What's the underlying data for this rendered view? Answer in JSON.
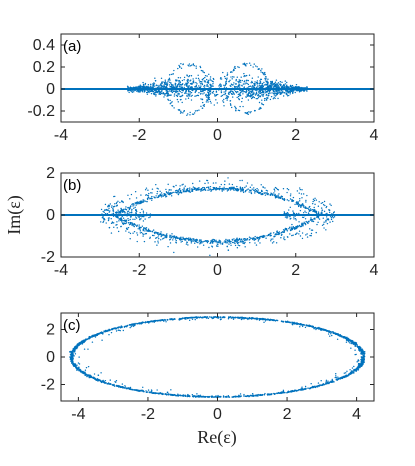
{
  "figure": {
    "ylabel": "Im(ε)",
    "xlabel": "Re(ε)",
    "point_color": "#0072BD"
  },
  "chart_data": [
    {
      "type": "scatter",
      "panel": "(a)",
      "xlim": [
        -4,
        4
      ],
      "ylim": [
        -0.3,
        0.5
      ],
      "xticks": [
        -4,
        -2,
        0,
        2,
        4
      ],
      "yticks": [
        -0.2,
        0,
        0.2,
        0.4
      ],
      "xtick_labels": [
        "-4",
        "-2",
        "0",
        "2",
        "4"
      ],
      "ytick_labels": [
        "-0.2",
        "0",
        "0.2",
        "0.4"
      ],
      "grid": false,
      "description_values": {
        "real_axis_line": [
          -4,
          4
        ],
        "cloud_x_range": [
          -2.3,
          2.3
        ],
        "cloud_y_halfwidth": 0.06,
        "lobe_centers": [
          -0.75,
          0.75
        ],
        "lobe_halfwidth": 0.55,
        "lobe_height": 0.22
      }
    },
    {
      "type": "scatter",
      "panel": "(b)",
      "xlim": [
        -4,
        4
      ],
      "ylim": [
        -2,
        2
      ],
      "xticks": [
        -4,
        -2,
        0,
        2,
        4
      ],
      "yticks": [
        -2,
        0,
        2
      ],
      "xtick_labels": [
        "-4",
        "-2",
        "0",
        "2",
        "4"
      ],
      "ytick_labels": [
        "-2",
        "0",
        "2"
      ],
      "grid": false,
      "description_values": {
        "real_axis_line": [
          -4,
          4
        ],
        "eye_halfwidth_x": 2.6,
        "eye_halfheight_y": 1.25,
        "outer_scatter_halfheight_y": 1.55
      }
    },
    {
      "type": "scatter",
      "panel": "(c)",
      "xlim": [
        -4.5,
        4.5
      ],
      "ylim": [
        -3.2,
        3.2
      ],
      "xticks": [
        -4,
        -2,
        0,
        2,
        4
      ],
      "yticks": [
        -2,
        0,
        2
      ],
      "xtick_labels": [
        "-4",
        "-2",
        "0",
        "2",
        "4"
      ],
      "ytick_labels": [
        "-2",
        "0",
        "2"
      ],
      "grid": false,
      "description_values": {
        "ellipse_semi_axis_x": 4.2,
        "ellipse_semi_axis_y": 2.9
      }
    }
  ]
}
